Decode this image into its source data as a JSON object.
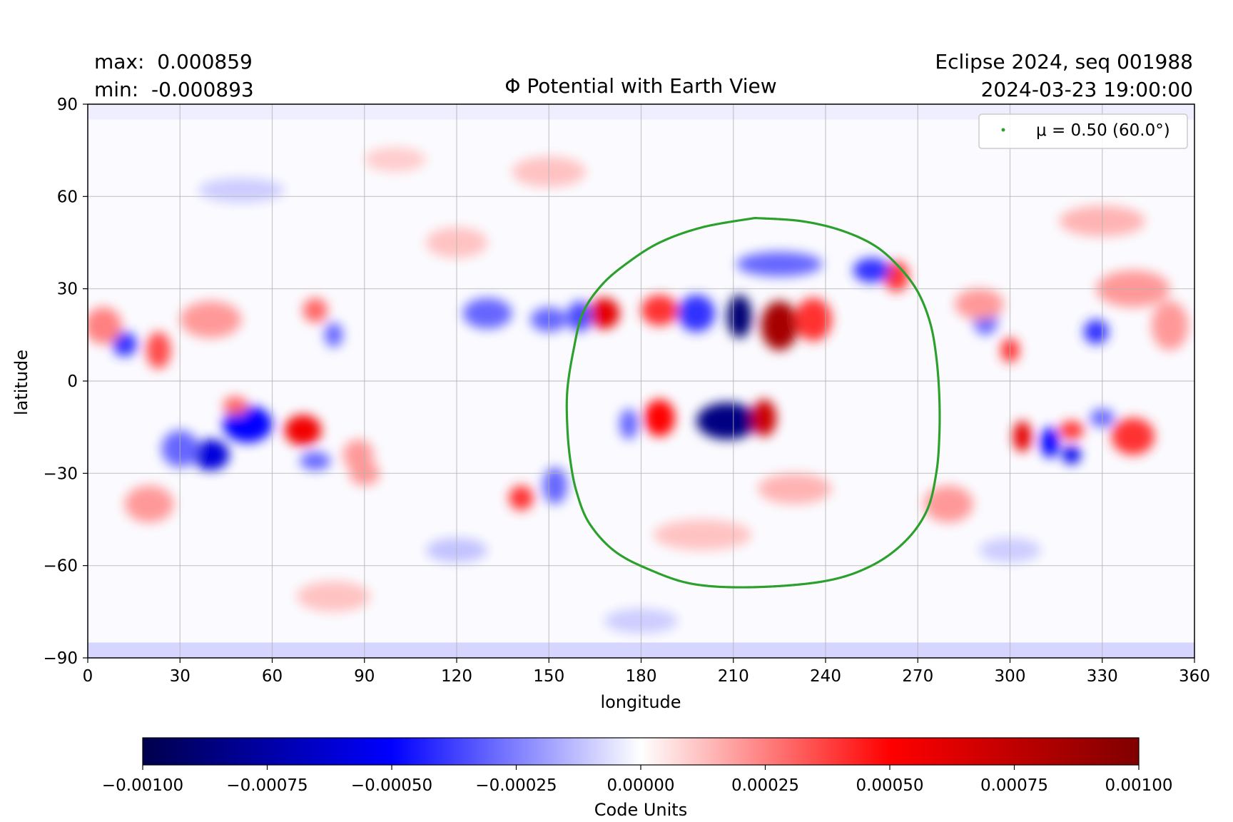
{
  "header": {
    "max_label": "max:  0.000859",
    "min_label": "min:  -0.000893",
    "run_label": "Eclipse 2024, seq 001988",
    "time_label": "2024-03-23 19:00:00"
  },
  "chart_data": {
    "type": "heatmap",
    "title": "Φ Potential with Earth View",
    "xlabel": "longitude",
    "ylabel": "latitude",
    "xlim": [
      0,
      360
    ],
    "ylim": [
      -90,
      90
    ],
    "x_ticks": [
      0,
      30,
      60,
      90,
      120,
      150,
      180,
      210,
      240,
      270,
      300,
      330,
      360
    ],
    "x_tick_labels": [
      "0",
      "30",
      "60",
      "90",
      "120",
      "150",
      "180",
      "210",
      "240",
      "270",
      "300",
      "330",
      "360"
    ],
    "y_ticks": [
      -90,
      -60,
      -30,
      0,
      30,
      60,
      90
    ],
    "y_tick_labels": [
      "−90",
      "−60",
      "−30",
      "0",
      "30",
      "60",
      "90"
    ],
    "grid": true,
    "colormap": "seismic",
    "colormap_colors": [
      "#00004c",
      "#0000ff",
      "#ffffff",
      "#ff0000",
      "#800000"
    ],
    "extrema": {
      "max": 0.000859,
      "min": -0.000893
    },
    "colorbar": {
      "label": "Code Units",
      "vmin": -0.001,
      "vmax": 0.001,
      "ticks": [
        -0.001,
        -0.00075,
        -0.0005,
        -0.00025,
        0,
        0.00025,
        0.0005,
        0.00075,
        0.001
      ],
      "tick_labels": [
        "−0.00100",
        "−0.00075",
        "−0.00050",
        "−0.00025",
        "0.00000",
        "0.00025",
        "0.00050",
        "0.00075",
        "0.00100"
      ]
    },
    "legend": {
      "position": "top-right",
      "label": "μ = 0.50 (60.0°)",
      "color": "#2ca02c"
    },
    "contour": {
      "name": "μ = 0.50 (60.0°)",
      "color": "#2ca02c",
      "points": [
        [
          217,
          53
        ],
        [
          232,
          52
        ],
        [
          245,
          49
        ],
        [
          256,
          44
        ],
        [
          264,
          37
        ],
        [
          270,
          29
        ],
        [
          274,
          19
        ],
        [
          276,
          8
        ],
        [
          277,
          -5
        ],
        [
          277,
          -18
        ],
        [
          276,
          -30
        ],
        [
          273,
          -42
        ],
        [
          266,
          -52
        ],
        [
          255,
          -60
        ],
        [
          240,
          -65
        ],
        [
          217,
          -67
        ],
        [
          197,
          -66
        ],
        [
          182,
          -61
        ],
        [
          171,
          -55
        ],
        [
          163,
          -46
        ],
        [
          159,
          -36
        ],
        [
          157,
          -26
        ],
        [
          156,
          -15
        ],
        [
          156,
          -3
        ],
        [
          158,
          10
        ],
        [
          161,
          22
        ],
        [
          167,
          31
        ],
        [
          175,
          38
        ],
        [
          186,
          45
        ],
        [
          200,
          50
        ],
        [
          217,
          53
        ]
      ]
    },
    "features": [
      {
        "lon": 212,
        "lat": 21,
        "value": -0.00089,
        "rlon": 4,
        "rlat": 7
      },
      {
        "lon": 225,
        "lat": 18,
        "value": 0.00085,
        "rlon": 6,
        "rlat": 8
      },
      {
        "lon": 208,
        "lat": -13,
        "value": -0.00085,
        "rlon": 10,
        "rlat": 6
      },
      {
        "lon": 220,
        "lat": -12,
        "value": 0.0007,
        "rlon": 4,
        "rlat": 6
      },
      {
        "lon": 186,
        "lat": -12,
        "value": 0.0005,
        "rlon": 5,
        "rlat": 6
      },
      {
        "lon": 176,
        "lat": -14,
        "value": -0.0003,
        "rlon": 3,
        "rlat": 5
      },
      {
        "lon": 168,
        "lat": 22,
        "value": 0.0006,
        "rlon": 5,
        "rlat": 5
      },
      {
        "lon": 160,
        "lat": 21,
        "value": -0.00035,
        "rlon": 4,
        "rlat": 5
      },
      {
        "lon": 198,
        "lat": 22,
        "value": -0.0004,
        "rlon": 6,
        "rlat": 6
      },
      {
        "lon": 186,
        "lat": 23,
        "value": 0.0004,
        "rlon": 6,
        "rlat": 5
      },
      {
        "lon": 236,
        "lat": 20,
        "value": 0.0004,
        "rlon": 6,
        "rlat": 7
      },
      {
        "lon": 263,
        "lat": 34,
        "value": 0.0004,
        "rlon": 4,
        "rlat": 5
      },
      {
        "lon": 255,
        "lat": 36,
        "value": -0.0004,
        "rlon": 6,
        "rlat": 4
      },
      {
        "lon": 225,
        "lat": 38,
        "value": -0.0003,
        "rlon": 14,
        "rlat": 4
      },
      {
        "lon": 130,
        "lat": 22,
        "value": -0.0003,
        "rlon": 8,
        "rlat": 5
      },
      {
        "lon": 150,
        "lat": 20,
        "value": -0.0003,
        "rlon": 6,
        "rlat": 4
      },
      {
        "lon": 12,
        "lat": 12,
        "value": -0.0004,
        "rlon": 4,
        "rlat": 4
      },
      {
        "lon": 23,
        "lat": 10,
        "value": 0.00035,
        "rlon": 4,
        "rlat": 6
      },
      {
        "lon": 5,
        "lat": 18,
        "value": 0.00025,
        "rlon": 6,
        "rlat": 6
      },
      {
        "lon": 40,
        "lat": 20,
        "value": 0.0002,
        "rlon": 10,
        "rlat": 6
      },
      {
        "lon": 74,
        "lat": 23,
        "value": 0.0003,
        "rlon": 4,
        "rlat": 4
      },
      {
        "lon": 80,
        "lat": 15,
        "value": -0.0003,
        "rlon": 3,
        "rlat": 4
      },
      {
        "lon": 40,
        "lat": -24,
        "value": -0.0006,
        "rlon": 6,
        "rlat": 5
      },
      {
        "lon": 52,
        "lat": -14,
        "value": -0.0005,
        "rlon": 8,
        "rlat": 6
      },
      {
        "lon": 30,
        "lat": -22,
        "value": -0.0003,
        "rlon": 6,
        "rlat": 6
      },
      {
        "lon": 70,
        "lat": -16,
        "value": 0.00055,
        "rlon": 6,
        "rlat": 5
      },
      {
        "lon": 48,
        "lat": -8,
        "value": 0.0003,
        "rlon": 4,
        "rlat": 3
      },
      {
        "lon": 74,
        "lat": -26,
        "value": -0.0003,
        "rlon": 5,
        "rlat": 3
      },
      {
        "lon": 88,
        "lat": -24,
        "value": 0.0002,
        "rlon": 5,
        "rlat": 5
      },
      {
        "lon": 141,
        "lat": -38,
        "value": 0.0004,
        "rlon": 4,
        "rlat": 4
      },
      {
        "lon": 152,
        "lat": -34,
        "value": -0.0003,
        "rlon": 4,
        "rlat": 6
      },
      {
        "lon": 304,
        "lat": -18,
        "value": 0.0006,
        "rlon": 3,
        "rlat": 5
      },
      {
        "lon": 313,
        "lat": -20,
        "value": -0.0005,
        "rlon": 3,
        "rlat": 5
      },
      {
        "lon": 320,
        "lat": -24,
        "value": -0.00055,
        "rlon": 3,
        "rlat": 3
      },
      {
        "lon": 320,
        "lat": -16,
        "value": 0.0004,
        "rlon": 4,
        "rlat": 3
      },
      {
        "lon": 340,
        "lat": -18,
        "value": 0.0004,
        "rlon": 7,
        "rlat": 6
      },
      {
        "lon": 330,
        "lat": -12,
        "value": -0.0003,
        "rlon": 4,
        "rlat": 3
      },
      {
        "lon": 300,
        "lat": 10,
        "value": 0.0004,
        "rlon": 3,
        "rlat": 4
      },
      {
        "lon": 292,
        "lat": 20,
        "value": -0.0003,
        "rlon": 4,
        "rlat": 5
      },
      {
        "lon": 328,
        "lat": 16,
        "value": -0.0004,
        "rlon": 4,
        "rlat": 4
      },
      {
        "lon": 340,
        "lat": 30,
        "value": 0.0002,
        "rlon": 12,
        "rlat": 6
      },
      {
        "lon": 352,
        "lat": 18,
        "value": 0.0002,
        "rlon": 6,
        "rlat": 8
      },
      {
        "lon": 290,
        "lat": 25,
        "value": 0.0002,
        "rlon": 8,
        "rlat": 5
      },
      {
        "lon": 20,
        "lat": -40,
        "value": 0.0002,
        "rlon": 8,
        "rlat": 6
      },
      {
        "lon": 90,
        "lat": -30,
        "value": 0.0002,
        "rlon": 5,
        "rlat": 4
      },
      {
        "lon": 330,
        "lat": 52,
        "value": 0.00015,
        "rlon": 14,
        "rlat": 5
      },
      {
        "lon": 150,
        "lat": 68,
        "value": 0.00012,
        "rlon": 12,
        "rlat": 5
      },
      {
        "lon": 100,
        "lat": 72,
        "value": 0.0001,
        "rlon": 10,
        "rlat": 4
      },
      {
        "lon": 50,
        "lat": 62,
        "value": -0.0001,
        "rlon": 14,
        "rlat": 4
      },
      {
        "lon": 80,
        "lat": -70,
        "value": 0.00012,
        "rlon": 12,
        "rlat": 5
      },
      {
        "lon": 180,
        "lat": -78,
        "value": -0.0001,
        "rlon": 12,
        "rlat": 4
      },
      {
        "lon": 200,
        "lat": -50,
        "value": 0.00012,
        "rlon": 16,
        "rlat": 5
      },
      {
        "lon": 120,
        "lat": -55,
        "value": -0.00012,
        "rlon": 10,
        "rlat": 4
      },
      {
        "lon": 120,
        "lat": 45,
        "value": 0.00012,
        "rlon": 10,
        "rlat": 5
      },
      {
        "lon": 230,
        "lat": -35,
        "value": 0.00015,
        "rlon": 12,
        "rlat": 5
      },
      {
        "lon": 280,
        "lat": -40,
        "value": 0.0002,
        "rlon": 8,
        "rlat": 6
      },
      {
        "lon": 300,
        "lat": -55,
        "value": -0.0001,
        "rlon": 10,
        "rlat": 4
      }
    ],
    "polar_bands": [
      {
        "lat_from": -90,
        "lat_to": -85,
        "value": -0.0001
      },
      {
        "lat_from": 85,
        "lat_to": 90,
        "value": -4e-05
      }
    ]
  }
}
